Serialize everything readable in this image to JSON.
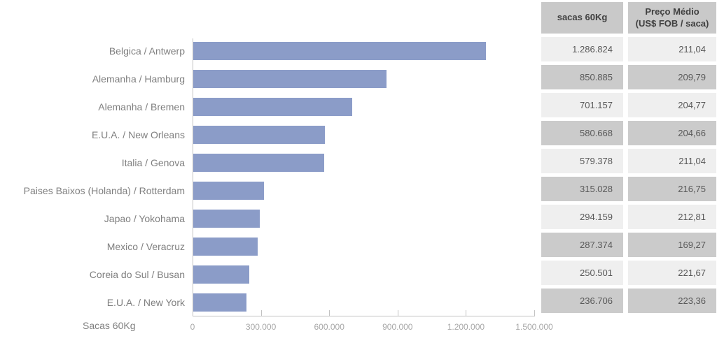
{
  "chart_data": {
    "type": "bar",
    "orientation": "horizontal",
    "title": "",
    "xlabel": "Sacas 60Kg",
    "ylabel": "",
    "categories": [
      "Belgica / Antwerp",
      "Alemanha / Hamburg",
      "Alemanha / Bremen",
      "E.U.A. / New Orleans",
      "Italia / Genova",
      "Paises Baixos (Holanda) / Rotterdam",
      "Japao / Yokohama",
      "Mexico / Veracruz",
      "Coreia do Sul  / Busan",
      "E.U.A. / New York"
    ],
    "series": [
      {
        "name": "sacas 60Kg",
        "values": [
          1286824,
          850885,
          701157,
          580668,
          579378,
          315028,
          294159,
          287374,
          250501,
          236706
        ]
      },
      {
        "name": "Preço Médio (US$ FOB / saca)",
        "values": [
          211.04,
          209.79,
          204.77,
          204.66,
          211.04,
          216.75,
          212.81,
          169.27,
          221.67,
          223.36
        ]
      }
    ],
    "bar_series": "sacas 60Kg",
    "xlim": [
      0,
      1500000
    ],
    "x_tick_values": [
      0,
      300000,
      600000,
      900000,
      1200000,
      1500000
    ],
    "x_tick_labels": [
      "0",
      "300.000",
      "600.000",
      "900.000",
      "1.200.000",
      "1.500.000"
    ],
    "grid": false,
    "legend_position": "none",
    "bar_color": "#8B9CC8"
  },
  "table": {
    "headers": [
      "sacas 60Kg",
      "Preço Médio\n(US$ FOB / saca)"
    ],
    "rows": [
      [
        "1.286.824",
        "211,04"
      ],
      [
        "850.885",
        "209,79"
      ],
      [
        "701.157",
        "204,77"
      ],
      [
        "580.668",
        "204,66"
      ],
      [
        "579.378",
        "211,04"
      ],
      [
        "315.028",
        "216,75"
      ],
      [
        "294.159",
        "212,81"
      ],
      [
        "287.374",
        "169,27"
      ],
      [
        "250.501",
        "221,67"
      ],
      [
        "236.706",
        "223,36"
      ]
    ]
  }
}
